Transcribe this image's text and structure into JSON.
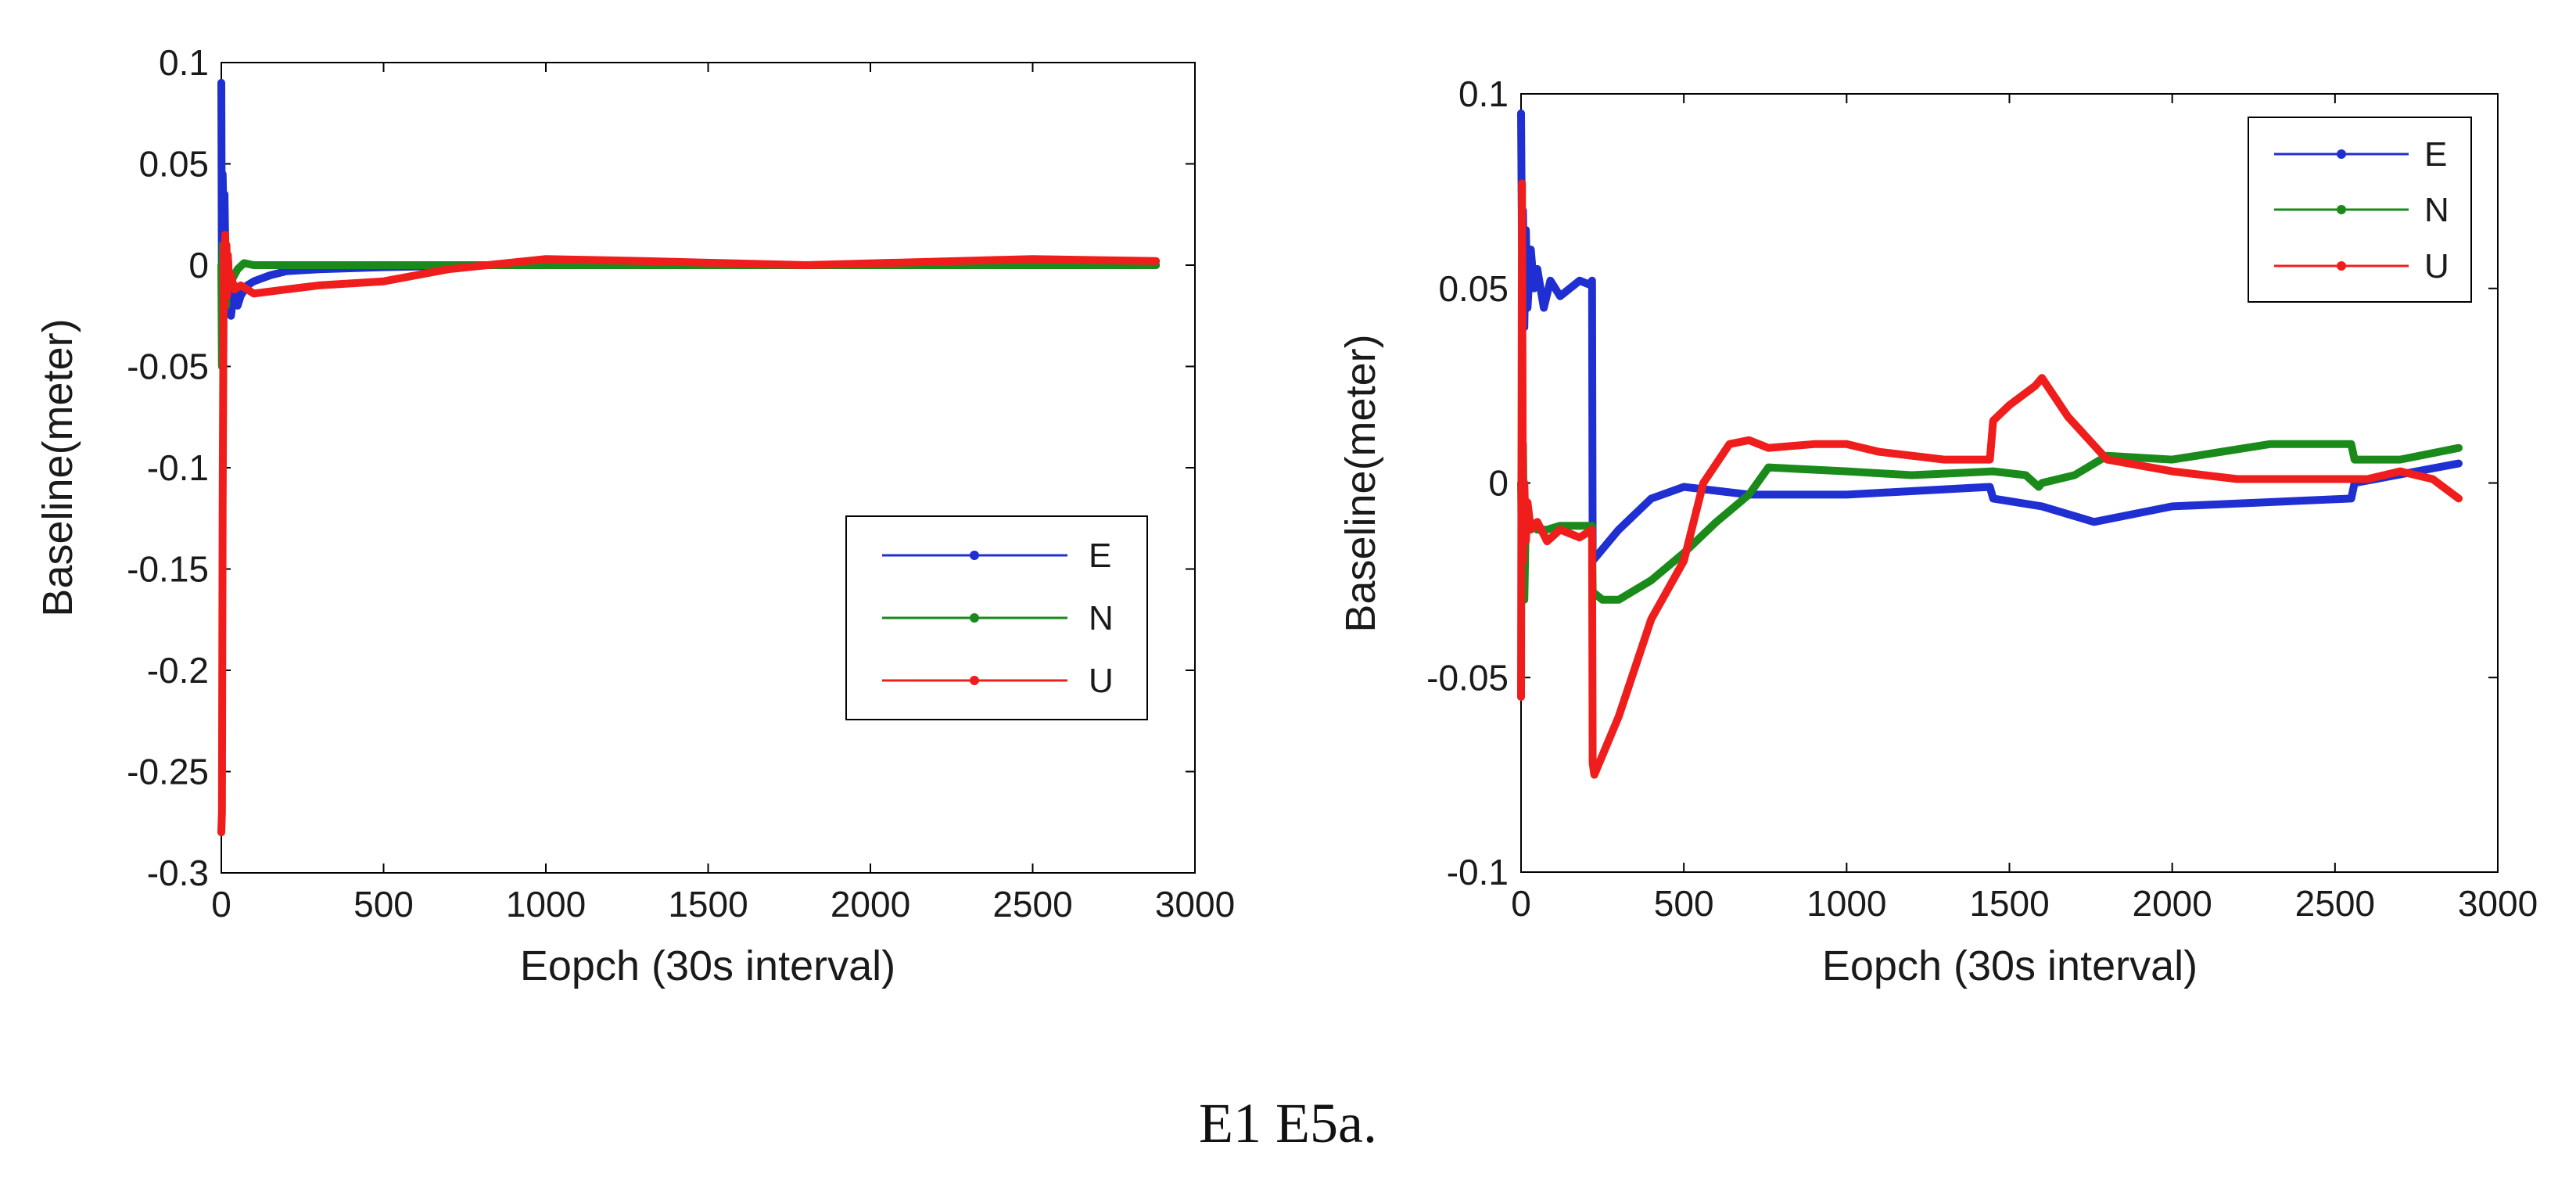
{
  "caption": "E1 E5a.",
  "colors": {
    "E": "#1f2fd1",
    "N": "#1a8a1a",
    "U": "#f01d1d"
  },
  "chart_data": [
    {
      "type": "line",
      "title": "",
      "xlabel": "Eopch (30s interval)",
      "ylabel": "Baseline(meter)",
      "xlim": [
        0,
        3000
      ],
      "ylim": [
        -0.3,
        0.1
      ],
      "xticks": [
        0,
        500,
        1000,
        1500,
        2000,
        2500,
        3000
      ],
      "xtick_labels": [
        "0",
        "500",
        "1000",
        "1500",
        "2000",
        "2500",
        "3000"
      ],
      "yticks": [
        -0.3,
        -0.25,
        -0.2,
        -0.15,
        -0.1,
        -0.05,
        0,
        0.05,
        0.1
      ],
      "ytick_labels": [
        "-0.3",
        "-0.25",
        "-0.2",
        "-0.15",
        "-0.1",
        "-0.05",
        "0",
        "0.05",
        "0.1"
      ],
      "legend_position": "center-right",
      "series": [
        {
          "name": "E",
          "color": "#1f2fd1",
          "x": [
            0,
            2,
            4,
            6,
            8,
            10,
            12,
            15,
            20,
            25,
            30,
            40,
            50,
            60,
            80,
            100,
            150,
            200,
            300,
            500,
            800,
            1000,
            1500,
            2000,
            2500,
            2880
          ],
          "y": [
            0.09,
            -0.02,
            0.045,
            0.03,
            0.02,
            0.035,
            0.01,
            -0.02,
            0.005,
            -0.015,
            -0.025,
            -0.01,
            -0.02,
            -0.015,
            -0.01,
            -0.008,
            -0.005,
            -0.003,
            -0.002,
            -0.001,
            0.0,
            0.0,
            0.0,
            0.0,
            0.0,
            0.0
          ]
        },
        {
          "name": "N",
          "color": "#1a8a1a",
          "x": [
            0,
            2,
            4,
            6,
            8,
            10,
            12,
            15,
            20,
            30,
            50,
            70,
            100,
            150,
            200,
            500,
            1000,
            1500,
            2000,
            2500,
            2880
          ],
          "y": [
            0.0,
            -0.05,
            0.01,
            -0.03,
            -0.005,
            0.005,
            -0.01,
            -0.02,
            -0.003,
            -0.008,
            -0.002,
            0.001,
            0.0,
            0.0,
            0.0,
            0.0,
            0.0,
            0.0,
            0.0,
            0.0,
            0.0
          ]
        },
        {
          "name": "U",
          "color": "#f01d1d",
          "x": [
            0,
            2,
            4,
            6,
            8,
            10,
            12,
            14,
            16,
            18,
            20,
            25,
            30,
            40,
            60,
            100,
            200,
            300,
            500,
            700,
            1000,
            1300,
            1800,
            2500,
            2880
          ],
          "y": [
            -0.28,
            -0.27,
            -0.12,
            -0.05,
            0.01,
            -0.02,
            0.015,
            -0.01,
            0.01,
            -0.015,
            0.005,
            -0.01,
            -0.005,
            -0.012,
            -0.01,
            -0.014,
            -0.012,
            -0.01,
            -0.008,
            -0.002,
            0.003,
            0.002,
            0.0,
            0.003,
            0.002
          ]
        }
      ]
    },
    {
      "type": "line",
      "title": "",
      "xlabel": "Eopch (30s interval)",
      "ylabel": "Baseline(meter)",
      "xlim": [
        0,
        3000
      ],
      "ylim": [
        -0.1,
        0.1
      ],
      "xticks": [
        0,
        500,
        1000,
        1500,
        2000,
        2500,
        3000
      ],
      "xtick_labels": [
        "0",
        "500",
        "1000",
        "1500",
        "2000",
        "2500",
        "3000"
      ],
      "yticks": [
        -0.1,
        -0.05,
        0,
        0.05,
        0.1
      ],
      "ytick_labels": [
        "-0.1",
        "-0.05",
        "0",
        "0.05",
        "0.1"
      ],
      "legend_position": "top-right",
      "series": [
        {
          "name": "E",
          "color": "#1f2fd1",
          "x": [
            0,
            3,
            6,
            10,
            15,
            20,
            30,
            40,
            50,
            70,
            90,
            120,
            150,
            180,
            210,
            218,
            220,
            300,
            400,
            500,
            700,
            1000,
            1440,
            1450,
            1600,
            1760,
            2000,
            2550,
            2560,
            2880
          ],
          "y": [
            0.095,
            0.06,
            0.07,
            0.04,
            0.065,
            0.045,
            0.06,
            0.05,
            0.055,
            0.045,
            0.052,
            0.048,
            0.05,
            0.052,
            0.051,
            0.052,
            -0.02,
            -0.012,
            -0.004,
            -0.001,
            -0.003,
            -0.003,
            -0.001,
            -0.004,
            -0.006,
            -0.01,
            -0.006,
            -0.004,
            0.0,
            0.005
          ]
        },
        {
          "name": "N",
          "color": "#1a8a1a",
          "x": [
            0,
            3,
            6,
            10,
            15,
            20,
            30,
            50,
            80,
            120,
            180,
            218,
            220,
            250,
            300,
            400,
            500,
            600,
            700,
            760,
            1000,
            1200,
            1450,
            1550,
            1590,
            1600,
            1700,
            1800,
            2000,
            2300,
            2550,
            2560,
            2700,
            2880
          ],
          "y": [
            0.0,
            -0.02,
            0.01,
            -0.03,
            -0.008,
            -0.012,
            -0.01,
            -0.012,
            -0.012,
            -0.011,
            -0.011,
            -0.011,
            -0.028,
            -0.03,
            -0.03,
            -0.025,
            -0.018,
            -0.01,
            -0.003,
            0.004,
            0.003,
            0.002,
            0.003,
            0.002,
            -0.001,
            0.0,
            0.002,
            0.007,
            0.006,
            0.01,
            0.01,
            0.006,
            0.006,
            0.009
          ]
        },
        {
          "name": "U",
          "color": "#f01d1d",
          "x": [
            0,
            3,
            6,
            10,
            15,
            20,
            30,
            50,
            80,
            120,
            180,
            218,
            220,
            225,
            300,
            400,
            500,
            560,
            640,
            700,
            760,
            900,
            1000,
            1100,
            1300,
            1440,
            1450,
            1500,
            1580,
            1600,
            1680,
            1800,
            2000,
            2200,
            2400,
            2600,
            2700,
            2800,
            2880
          ],
          "y": [
            -0.055,
            0.077,
            -0.02,
            0.0,
            -0.015,
            -0.005,
            -0.012,
            -0.01,
            -0.015,
            -0.012,
            -0.014,
            -0.012,
            -0.072,
            -0.075,
            -0.06,
            -0.035,
            -0.02,
            0.0,
            0.01,
            0.011,
            0.009,
            0.01,
            0.01,
            0.008,
            0.006,
            0.006,
            0.016,
            0.02,
            0.025,
            0.027,
            0.017,
            0.006,
            0.003,
            0.001,
            0.001,
            0.001,
            0.003,
            0.001,
            -0.004
          ]
        }
      ]
    }
  ]
}
